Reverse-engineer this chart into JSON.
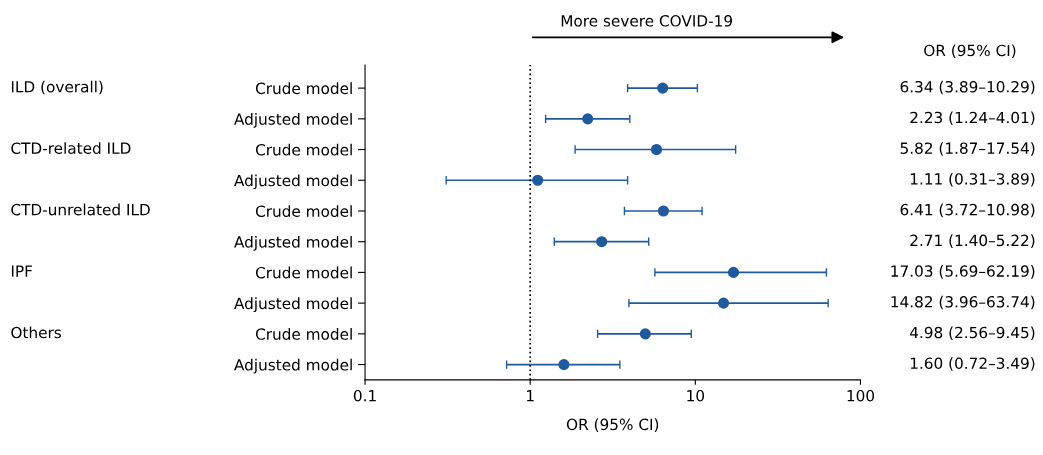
{
  "chart_data": {
    "type": "scatter",
    "orientation": "horizontal",
    "log": "x",
    "marker": "circle",
    "grid": false,
    "categories": [
      "Crude model",
      "Adjusted model",
      "Crude model",
      "Adjusted model",
      "Crude model",
      "Adjusted model",
      "Crude model",
      "Adjusted model",
      "Crude model",
      "Adjusted model"
    ],
    "y2_categories": [
      "ILD (overall)",
      null,
      "CTD-related ILD",
      null,
      "CTD-unrelated ILD",
      null,
      "IPF",
      null,
      "Others",
      null
    ],
    "color": "#1f5a9e",
    "values": [
      6.34,
      2.23,
      5.82,
      1.11,
      6.41,
      2.71,
      17.03,
      14.82,
      4.98,
      1.6
    ],
    "errors": [
      [
        3.89,
        10.29
      ],
      [
        1.24,
        4.01
      ],
      [
        1.87,
        17.54
      ],
      [
        0.31,
        3.89
      ],
      [
        3.72,
        10.98
      ],
      [
        1.4,
        5.22
      ],
      [
        5.69,
        62.19
      ],
      [
        3.96,
        63.74
      ],
      [
        2.56,
        9.45
      ],
      [
        0.72,
        3.49
      ]
    ],
    "value_labels": [
      "6.34 (3.89–10.29)",
      "2.23 (1.24–4.01)",
      "5.82 (1.87–17.54)",
      "1.11 (0.31–3.89)",
      "6.41 (3.72–10.98)",
      "2.71 (1.40–5.22)",
      "17.03 (5.69–62.19)",
      "14.82 (3.96–63.74)",
      "4.98 (2.56–9.45)",
      "1.60 (0.72–3.49)"
    ],
    "xlim": [
      0.1,
      100
    ],
    "xticks": [
      0.1,
      1,
      10,
      100
    ],
    "xlabel": "OR (95% CI)",
    "ref_lines": [
      {
        "axis": "x",
        "value": 1,
        "line_style": "dotted",
        "color": "#000000"
      }
    ],
    "annotations": [
      "More severe COVID-19",
      "OR (95% CI)"
    ]
  }
}
